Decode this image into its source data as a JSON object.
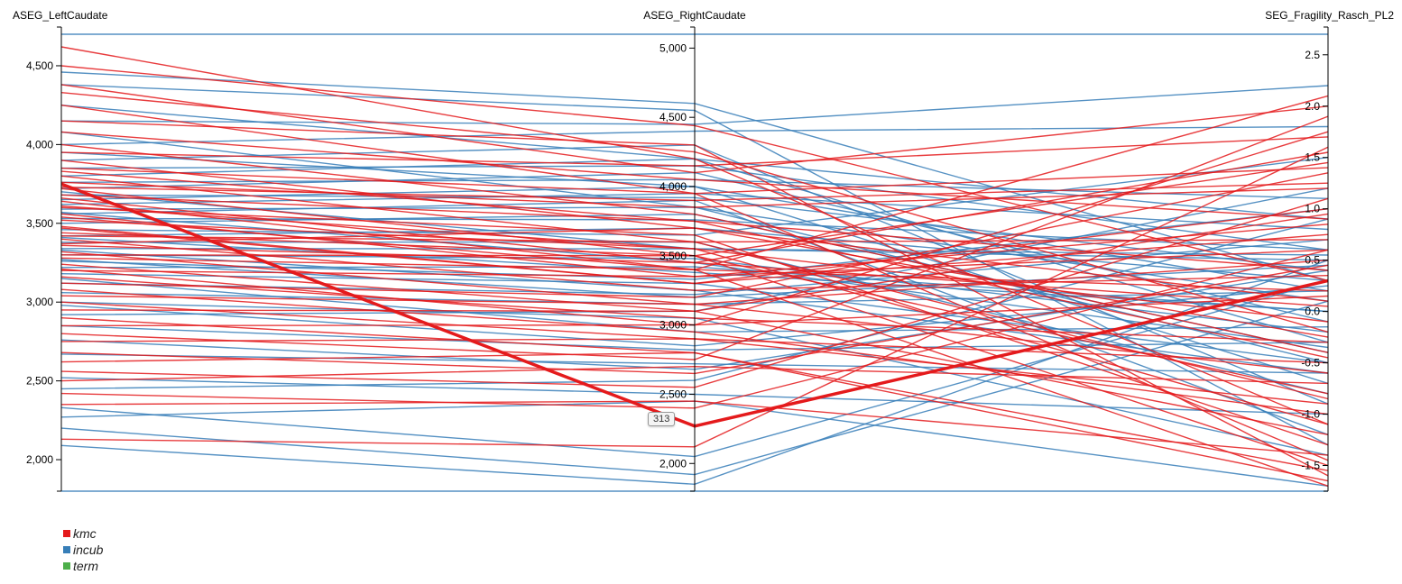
{
  "chart_data": {
    "type": "parallel-coordinates",
    "dimensions": [
      {
        "name": "ASEG_LeftCaudate",
        "ylim": [
          1800,
          4700
        ],
        "ticks": [
          2000,
          2500,
          3000,
          3500,
          4000,
          4500
        ],
        "tick_labels": [
          "2,000",
          "2,500",
          "3,000",
          "3,500",
          "4,000",
          "4,500"
        ]
      },
      {
        "name": "ASEG_RightCaudate",
        "ylim": [
          1800,
          5100
        ],
        "ticks": [
          2000,
          2500,
          3000,
          3500,
          4000,
          4500,
          5000
        ],
        "tick_labels": [
          "2,000",
          "2,500",
          "3,000",
          "3,500",
          "4,000",
          "4,500",
          "5,000"
        ]
      },
      {
        "name": "SEG_Fragility_Rasch_PL2",
        "ylim": [
          -1.75,
          2.7
        ],
        "ticks": [
          -1.5,
          -1.0,
          -0.5,
          0.0,
          0.5,
          1.0,
          1.5,
          2.0,
          2.5
        ],
        "tick_labels": [
          "-1.5",
          "-1.0",
          "-0.5",
          "0.0",
          "0.5",
          "1.0",
          "1.5",
          "2.0",
          "2.5"
        ]
      }
    ],
    "legend": [
      {
        "name": "kmc",
        "color": "#e41a1c"
      },
      {
        "name": "incub",
        "color": "#377eb8"
      },
      {
        "name": "term",
        "color": "#4daf4a"
      }
    ],
    "highlighted_label": "313",
    "series": [
      {
        "group": "kmc",
        "highlight": true,
        "values": [
          3750,
          2270,
          0.3
        ]
      },
      {
        "group": "incub",
        "values": [
          4700,
          5100,
          2.7
        ]
      },
      {
        "group": "incub",
        "values": [
          1800,
          1800,
          -1.75
        ]
      },
      {
        "group": "incub",
        "values": [
          2090,
          1850,
          0.5
        ]
      },
      {
        "group": "incub",
        "values": [
          2200,
          1920,
          0.1
        ]
      },
      {
        "group": "incub",
        "values": [
          2330,
          2050,
          0.3
        ]
      },
      {
        "group": "incub",
        "values": [
          2270,
          2450,
          -1.7
        ]
      },
      {
        "group": "incub",
        "values": [
          2450,
          2600,
          0.9
        ]
      },
      {
        "group": "incub",
        "values": [
          2520,
          2500,
          -1.0
        ]
      },
      {
        "group": "incub",
        "values": [
          2670,
          2720,
          -0.6
        ]
      },
      {
        "group": "incub",
        "values": [
          2760,
          2680,
          0.4
        ]
      },
      {
        "group": "incub",
        "values": [
          2850,
          2820,
          -0.3
        ]
      },
      {
        "group": "incub",
        "values": [
          2920,
          3100,
          1.2
        ]
      },
      {
        "group": "incub",
        "values": [
          3000,
          3050,
          -1.4
        ]
      },
      {
        "group": "incub",
        "values": [
          3060,
          3150,
          0.2
        ]
      },
      {
        "group": "incub",
        "values": [
          3120,
          3220,
          0.7
        ]
      },
      {
        "group": "incub",
        "values": [
          3180,
          3300,
          -0.5
        ]
      },
      {
        "group": "incub",
        "values": [
          3220,
          3420,
          0.0
        ]
      },
      {
        "group": "incub",
        "values": [
          3260,
          3330,
          1.0
        ]
      },
      {
        "group": "incub",
        "values": [
          3300,
          3480,
          -0.2
        ]
      },
      {
        "group": "incub",
        "values": [
          3340,
          3550,
          0.5
        ]
      },
      {
        "group": "incub",
        "values": [
          3380,
          3600,
          -0.8
        ]
      },
      {
        "group": "incub",
        "values": [
          3420,
          3700,
          0.3
        ]
      },
      {
        "group": "incub",
        "values": [
          3460,
          3650,
          1.5
        ]
      },
      {
        "group": "incub",
        "values": [
          3500,
          3800,
          -0.4
        ]
      },
      {
        "group": "incub",
        "values": [
          3530,
          3760,
          0.6
        ]
      },
      {
        "group": "incub",
        "values": [
          3560,
          3900,
          -1.2
        ]
      },
      {
        "group": "incub",
        "values": [
          3590,
          3850,
          0.1
        ]
      },
      {
        "group": "incub",
        "values": [
          3620,
          3950,
          0.8
        ]
      },
      {
        "group": "incub",
        "values": [
          3650,
          4000,
          -0.7
        ]
      },
      {
        "group": "incub",
        "values": [
          3680,
          3920,
          0.4
        ]
      },
      {
        "group": "incub",
        "values": [
          3720,
          4100,
          -0.1
        ]
      },
      {
        "group": "incub",
        "values": [
          3760,
          4050,
          1.1
        ]
      },
      {
        "group": "incub",
        "values": [
          3800,
          4200,
          -0.3
        ]
      },
      {
        "group": "incub",
        "values": [
          3850,
          4150,
          0.6
        ]
      },
      {
        "group": "incub",
        "values": [
          3900,
          4300,
          -0.9
        ]
      },
      {
        "group": "incub",
        "values": [
          3950,
          4000,
          0.2
        ]
      },
      {
        "group": "incub",
        "values": [
          4000,
          4400,
          1.8
        ]
      },
      {
        "group": "incub",
        "values": [
          4080,
          3850,
          -0.5
        ]
      },
      {
        "group": "incub",
        "values": [
          4150,
          4450,
          2.2
        ]
      },
      {
        "group": "incub",
        "values": [
          4250,
          4200,
          0.9
        ]
      },
      {
        "group": "incub",
        "values": [
          4380,
          4550,
          -1.3
        ]
      },
      {
        "group": "incub",
        "values": [
          4460,
          4600,
          0.3
        ]
      },
      {
        "group": "incub",
        "values": [
          3410,
          3380,
          0.0
        ]
      },
      {
        "group": "incub",
        "values": [
          3330,
          3250,
          -0.6
        ]
      },
      {
        "group": "incub",
        "values": [
          3270,
          3200,
          0.45
        ]
      },
      {
        "group": "incub",
        "values": [
          3150,
          2950,
          -0.15
        ]
      },
      {
        "group": "incub",
        "values": [
          2980,
          2850,
          0.25
        ]
      },
      {
        "group": "incub",
        "values": [
          3570,
          3450,
          -0.35
        ]
      },
      {
        "group": "incub",
        "values": [
          3700,
          3550,
          0.55
        ]
      },
      {
        "group": "kmc",
        "values": [
          4620,
          4200,
          -1.1
        ]
      },
      {
        "group": "kmc",
        "values": [
          4500,
          4440,
          0.3
        ]
      },
      {
        "group": "kmc",
        "values": [
          4380,
          4100,
          2.0
        ]
      },
      {
        "group": "kmc",
        "values": [
          4330,
          4250,
          -0.2
        ]
      },
      {
        "group": "kmc",
        "values": [
          4250,
          3950,
          1.4
        ]
      },
      {
        "group": "kmc",
        "values": [
          4150,
          4300,
          -1.6
        ]
      },
      {
        "group": "kmc",
        "values": [
          4080,
          4050,
          0.9
        ]
      },
      {
        "group": "kmc",
        "values": [
          4000,
          3800,
          -0.4
        ]
      },
      {
        "group": "kmc",
        "values": [
          3950,
          4150,
          1.7
        ]
      },
      {
        "group": "kmc",
        "values": [
          3900,
          3700,
          0.1
        ]
      },
      {
        "group": "kmc",
        "values": [
          3850,
          3950,
          -1.45
        ]
      },
      {
        "group": "kmc",
        "values": [
          3800,
          3600,
          0.7
        ]
      },
      {
        "group": "kmc",
        "values": [
          3760,
          3850,
          1.2
        ]
      },
      {
        "group": "kmc",
        "values": [
          3720,
          3500,
          -0.8
        ]
      },
      {
        "group": "kmc",
        "values": [
          3680,
          3750,
          0.4
        ]
      },
      {
        "group": "kmc",
        "values": [
          3640,
          3400,
          2.1
        ]
      },
      {
        "group": "kmc",
        "values": [
          3600,
          3650,
          -1.3
        ]
      },
      {
        "group": "kmc",
        "values": [
          3560,
          3350,
          0.6
        ]
      },
      {
        "group": "kmc",
        "values": [
          3520,
          3550,
          -0.1
        ]
      },
      {
        "group": "kmc",
        "values": [
          3480,
          3300,
          1.0
        ]
      },
      {
        "group": "kmc",
        "values": [
          3440,
          3500,
          -1.5
        ]
      },
      {
        "group": "kmc",
        "values": [
          3400,
          3250,
          0.35
        ]
      },
      {
        "group": "kmc",
        "values": [
          3360,
          3450,
          1.55
        ]
      },
      {
        "group": "kmc",
        "values": [
          3320,
          3150,
          -0.6
        ]
      },
      {
        "group": "kmc",
        "values": [
          3280,
          3400,
          0.2
        ]
      },
      {
        "group": "kmc",
        "values": [
          3240,
          3100,
          -1.2
        ]
      },
      {
        "group": "kmc",
        "values": [
          3200,
          3350,
          0.85
        ]
      },
      {
        "group": "kmc",
        "values": [
          3160,
          3050,
          -0.3
        ]
      },
      {
        "group": "kmc",
        "values": [
          3120,
          3200,
          1.35
        ]
      },
      {
        "group": "kmc",
        "values": [
          3080,
          2950,
          -1.0
        ]
      },
      {
        "group": "kmc",
        "values": [
          3040,
          3150,
          0.5
        ]
      },
      {
        "group": "kmc",
        "values": [
          3000,
          2900,
          -0.5
        ]
      },
      {
        "group": "kmc",
        "values": [
          2950,
          3100,
          0.95
        ]
      },
      {
        "group": "kmc",
        "values": [
          2900,
          2800,
          -1.55
        ]
      },
      {
        "group": "kmc",
        "values": [
          2850,
          3000,
          0.15
        ]
      },
      {
        "group": "kmc",
        "values": [
          2800,
          2750,
          1.9
        ]
      },
      {
        "group": "kmc",
        "values": [
          2750,
          2900,
          -0.9
        ]
      },
      {
        "group": "kmc",
        "values": [
          2680,
          2650,
          0.45
        ]
      },
      {
        "group": "kmc",
        "values": [
          2620,
          2800,
          -1.65
        ]
      },
      {
        "group": "kmc",
        "values": [
          2560,
          2550,
          1.1
        ]
      },
      {
        "group": "kmc",
        "values": [
          2500,
          2700,
          -0.7
        ]
      },
      {
        "group": "kmc",
        "values": [
          2420,
          2400,
          0.6
        ]
      },
      {
        "group": "kmc",
        "values": [
          2350,
          2450,
          -1.4
        ]
      },
      {
        "group": "kmc",
        "values": [
          2130,
          2120,
          1.6
        ]
      },
      {
        "group": "kmc",
        "values": [
          3370,
          3700,
          -0.25
        ]
      },
      {
        "group": "kmc",
        "values": [
          3470,
          3300,
          0.75
        ]
      },
      {
        "group": "kmc",
        "values": [
          3610,
          3550,
          -1.1
        ]
      },
      {
        "group": "kmc",
        "values": [
          3730,
          3900,
          1.25
        ]
      },
      {
        "group": "kmc",
        "values": [
          3830,
          3750,
          -0.45
        ]
      },
      {
        "group": "kmc",
        "values": [
          3300,
          3500,
          1.45
        ]
      },
      {
        "group": "kmc",
        "values": [
          3540,
          3400,
          -1.7
        ]
      },
      {
        "group": "kmc",
        "values": [
          3660,
          3450,
          0.05
        ]
      },
      {
        "group": "kmc",
        "values": [
          3210,
          3000,
          1.75
        ]
      },
      {
        "group": "kmc",
        "values": [
          3420,
          3600,
          -0.85
        ]
      }
    ]
  }
}
